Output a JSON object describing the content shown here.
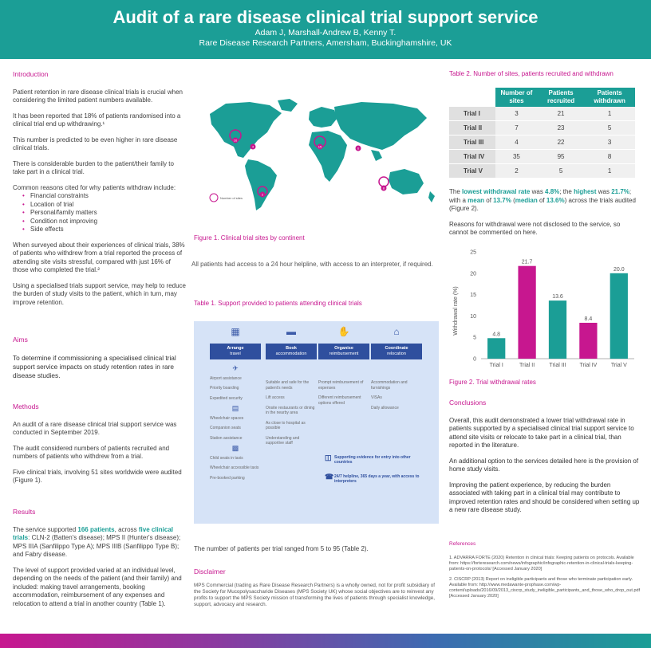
{
  "header": {
    "title": "Audit of a rare disease clinical trial support service",
    "authors": "Adam J, Marshall-Andrew B, Kenny T.",
    "affiliation": "Rare Disease Research Partners, Amersham, Buckinghamshire, UK"
  },
  "intro": {
    "heading": "Introduction",
    "p1": "Patient retention in rare disease clinical trials is crucial when considering the limited patient numbers available.",
    "p2": "It has been reported that 18% of patients randomised into a clinical trial end up withdrawing.¹",
    "p3": "This number is predicted to be even higher in rare disease clinical trials.",
    "p4": "There is considerable burden to the patient/their family to take part in a clinical trial.",
    "p5": "Common reasons cited for why patients withdraw include:",
    "reasons": [
      "Financial constraints",
      "Location of trial",
      "Personal/family matters",
      "Condition not improving",
      "Side effects"
    ],
    "p6": "When surveyed about their experiences of clinical trials, 38% of patients who withdrew from a trial reported the process of attending site visits stressful, compared with just 16% of those who completed the trial.²",
    "p7": "Using a specialised trials support service, may help to reduce the burden of study visits to the patient, which in turn, may improve retention."
  },
  "aims": {
    "heading": "Aims",
    "text": "To determine if commissioning a specialised clinical trial support service impacts on study retention rates in rare disease studies."
  },
  "methods": {
    "heading": "Methods",
    "p1": "An audit of a rare disease clinical trial support service was conducted in September 2019.",
    "p2": "The audit considered numbers of patients recruited and numbers of patients who withdrew from a trial.",
    "p3": "Five clinical trials, involving 51 sites worldwide were audited (Figure 1)."
  },
  "results": {
    "heading": "Results",
    "p1_a": "The service supported ",
    "p1_b": "166 patients",
    "p1_c": ", across ",
    "p1_d": "five clinical trials",
    "p1_e": ": CLN-2 (Batten's disease); MPS II (Hunter's disease); MPS IIIA (Sanfilippo Type A); MPS IIIB (Sanfilippo Type B); and Fabry disease.",
    "p2": "The level of support provided varied at an individual level, depending on the needs of the patient (and their family) and included: making travel arrangements, booking accommodation, reimbursement of any expenses and relocation to attend a trial in another country (Table 1)."
  },
  "map": {
    "legend": "Number of sites",
    "caption": "Figure 1. Clinical trial sites by continent",
    "markers": [
      "16",
      "4",
      "15",
      "6",
      "2",
      "8"
    ]
  },
  "helpline_text": "All patients had access to a 24 hour helpline, with access to an interpreter, if required.",
  "table1": {
    "caption": "Table 1. Support provided to patients attending clinical trials",
    "columns": [
      {
        "title": "Arrange",
        "sub": "travel",
        "items": [
          "Airport assistance",
          "Priority boarding",
          "Expedited security",
          "Wheelchair spaces",
          "Companion seats",
          "Station assistance",
          "Child seats in taxis",
          "Wheelchair accessible taxis",
          "Pre-booked parking"
        ]
      },
      {
        "title": "Book",
        "sub": "accommodation",
        "items": [
          "Suitable and safe for the patient's needs",
          "Lift access",
          "Onsite restaurants or dining in the nearby area",
          "As close to hospital as possible",
          "Understanding and supportive staff"
        ]
      },
      {
        "title": "Organise",
        "sub": "reimbursement",
        "items": [
          "Prompt reimbursement of expenses",
          "Different reimbursement options offered"
        ]
      },
      {
        "title": "Coordinate",
        "sub": "relocation",
        "items": [
          "Accommodation and furnishings",
          "VISAs",
          "Daily allowance"
        ]
      }
    ],
    "box1": "Supporting evidence for entry into other countries",
    "box2": "24/7 helpline, 365 days a year, with access to interpreters"
  },
  "range_text": "The number of patients per trial ranged from 5 to 95 (Table 2).",
  "disclaimer": {
    "heading": "Disclaimer",
    "text": "MPS Commercial (trading as Rare Disease Research Partners) is a wholly owned, not for profit subsidiary of the Society for Mucopolysaccharide Diseases (MPS Society UK) whose social objectives are to reinvest any profits to support the MPS Society mission of transforming the lives of patients through specialist knowledge, support, advocacy and research."
  },
  "table2": {
    "caption": "Table 2. Number of sites, patients recruited and withdrawn",
    "headers": [
      "Number of sites",
      "Patients recruited",
      "Patients withdrawn"
    ],
    "rows": [
      {
        "label": "Trial I",
        "sites": "3",
        "recruited": "21",
        "withdrawn": "1"
      },
      {
        "label": "Trial II",
        "sites": "7",
        "recruited": "23",
        "withdrawn": "5"
      },
      {
        "label": "Trial III",
        "sites": "4",
        "recruited": "22",
        "withdrawn": "3"
      },
      {
        "label": "Trial IV",
        "sites": "35",
        "recruited": "95",
        "withdrawn": "8"
      },
      {
        "label": "Trial V",
        "sites": "2",
        "recruited": "5",
        "withdrawn": "1"
      }
    ]
  },
  "withdrawal": {
    "a": "The ",
    "b": "lowest withdrawal rate",
    "c": " was ",
    "d": "4.8%",
    "e": "; the ",
    "f": "highest",
    "g": " was ",
    "h": "21.7%",
    "i": "; with a ",
    "j": "mean",
    "k": " of ",
    "l": "13.7%",
    "m": " (",
    "n": "median",
    "o": " of ",
    "p": "13.6%",
    "q": ") across the trials audited (Figure 2).",
    "reasons": "Reasons for withdrawal were not disclosed to the service, so cannot be commented on here."
  },
  "chart_data": {
    "type": "bar",
    "categories": [
      "Trial I",
      "Trial II",
      "Trial III",
      "Trial IV",
      "Trial V"
    ],
    "values": [
      4.8,
      21.7,
      13.6,
      8.4,
      20.0
    ],
    "labels": [
      "4.8",
      "21.7",
      "13.6",
      "8.4",
      "20.0"
    ],
    "colors": [
      "#1b9e96",
      "#c7178f",
      "#1b9e96",
      "#c7178f",
      "#1b9e96"
    ],
    "ylabel": "Withdrawal rate (%)",
    "ylim": [
      0,
      25
    ],
    "yticks": [
      "0",
      "5",
      "10",
      "15",
      "20",
      "25"
    ],
    "caption": "Figure 2. Trial withdrawal rates"
  },
  "conclusions": {
    "heading": "Conclusions",
    "p1": "Overall, this audit demonstrated a lower trial withdrawal rate in patients supported by a specialised clinical trial support service to attend site visits or relocate to take part in a clinical trial, than reported in the literature.",
    "p2": "An additional option to the services detailed here is the provision of home study visits.",
    "p3": "Improving the patient experience, by reducing the burden associated with taking part in a clinical trial may contribute to improved retention rates and should be considered when setting up a new rare disease study."
  },
  "references": {
    "heading": "References",
    "r1": "1.   ADVARRA FORTE (2020) Retention in clinical trials: Keeping patients on protocols. Available from: https://forteresearch.com/news/infographic/infographic-retention-in-clinical-trials-keeping-patients-on-protocols/ [Accessed January 2020]",
    "r2": "2.   CISCRP (2013) Report on ineligible participants and those who terminate participation early. Available from: http://www.medawante-prophase.com/wp-content/uploads/2016/09/2013_ciscrp_study_ineligible_participants_and_those_who_drop_out.pdf [Accessed January 2020]"
  }
}
